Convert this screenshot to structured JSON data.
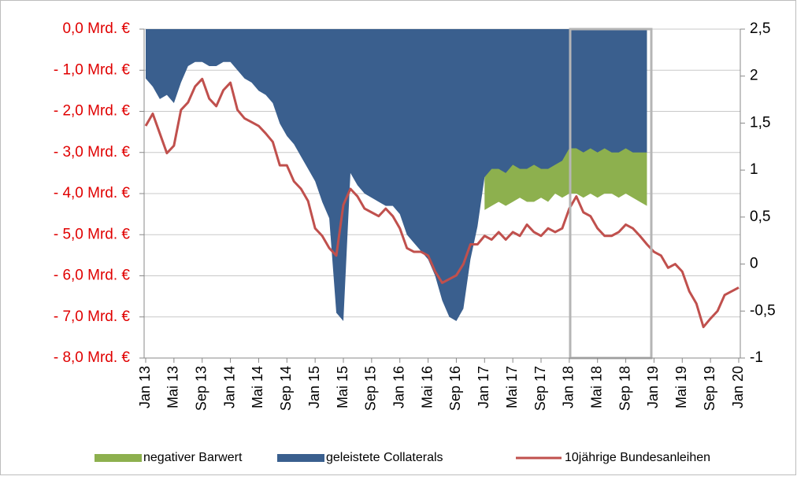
{
  "chart_data": {
    "type": "line",
    "categories": [
      "Jan 13",
      null,
      null,
      null,
      "Mai 13",
      null,
      null,
      null,
      "Sep 13",
      null,
      null,
      null,
      "Jan 14",
      null,
      null,
      null,
      "Mai 14",
      null,
      null,
      null,
      "Sep 14",
      null,
      null,
      null,
      "Jan 15",
      null,
      null,
      null,
      "Mai 15",
      null,
      null,
      null,
      "Sep 15",
      null,
      null,
      null,
      "Jan 16",
      null,
      null,
      null,
      "Mai 16",
      null,
      null,
      null,
      "Sep 16",
      null,
      null,
      null,
      "Jan 17",
      null,
      null,
      null,
      "Mai 17",
      null,
      null,
      null,
      "Sep 17",
      null,
      null,
      null,
      "Jan 18",
      null,
      null,
      null,
      "Mai 18",
      null,
      null,
      null,
      "Sep 18",
      null,
      null,
      null,
      "Jan 19",
      null,
      null,
      null,
      "Mai 19",
      null,
      null,
      null,
      "Sep 19",
      null,
      null,
      null,
      "Jan 20"
    ],
    "series": [
      {
        "name": "negativer Barwert",
        "type": "area",
        "color": "#8db04e",
        "values": [
          null,
          null,
          null,
          null,
          null,
          null,
          null,
          null,
          null,
          null,
          null,
          null,
          null,
          null,
          null,
          null,
          null,
          null,
          null,
          null,
          null,
          null,
          null,
          null,
          null,
          null,
          null,
          null,
          null,
          null,
          null,
          null,
          null,
          null,
          null,
          null,
          null,
          null,
          null,
          null,
          null,
          null,
          null,
          null,
          null,
          null,
          null,
          null,
          -4.4,
          -4.3,
          -4.2,
          -4.3,
          -4.2,
          -4.1,
          -4.2,
          -4.2,
          -4.1,
          -4.2,
          -4.0,
          -4.1,
          -4.0,
          -4.0,
          -4.1,
          -4.0,
          -4.1,
          -4.0,
          -4.0,
          -4.1,
          -4.0,
          -4.1,
          -4.2,
          -4.3,
          null,
          null,
          null,
          null,
          null,
          null,
          null,
          null,
          null,
          null,
          null,
          null,
          null
        ]
      },
      {
        "name": "geleistete Collaterals",
        "type": "area",
        "color": "#3a5f8e",
        "values": [
          -1.2,
          -1.4,
          -1.7,
          -1.6,
          -1.8,
          -1.3,
          -0.9,
          -0.8,
          -0.8,
          -0.9,
          -0.9,
          -0.8,
          -0.8,
          -1.0,
          -1.2,
          -1.3,
          -1.5,
          -1.6,
          -1.8,
          -2.3,
          -2.6,
          -2.8,
          -3.1,
          -3.4,
          -3.7,
          -4.2,
          -4.6,
          -6.9,
          -7.1,
          -3.5,
          -3.8,
          -4.0,
          -4.1,
          -4.2,
          -4.3,
          -4.3,
          -4.5,
          -5.0,
          -5.2,
          -5.4,
          -5.6,
          -6.0,
          -6.6,
          -7.0,
          -7.1,
          -6.8,
          -5.6,
          -4.8,
          -3.6,
          -3.4,
          -3.4,
          -3.5,
          -3.3,
          -3.4,
          -3.4,
          -3.3,
          -3.4,
          -3.4,
          -3.3,
          -3.2,
          -2.9,
          -2.9,
          -3.0,
          -2.9,
          -3.0,
          -2.9,
          -3.0,
          -3.0,
          -2.9,
          -3.0,
          -3.0,
          -3.0,
          null,
          null,
          null,
          null,
          null,
          null,
          null,
          null,
          null,
          null,
          null,
          null,
          null
        ]
      },
      {
        "name": "10jährige Bundesanleihen",
        "type": "line",
        "axis": "y2",
        "color": "#c0504d",
        "values": [
          1.47,
          1.6,
          1.39,
          1.18,
          1.26,
          1.64,
          1.72,
          1.89,
          1.97,
          1.76,
          1.68,
          1.85,
          1.93,
          1.64,
          1.55,
          1.51,
          1.47,
          1.39,
          1.3,
          1.05,
          1.05,
          0.88,
          0.8,
          0.67,
          0.38,
          0.3,
          0.17,
          0.09,
          0.63,
          0.8,
          0.72,
          0.59,
          0.55,
          0.51,
          0.59,
          0.51,
          0.38,
          0.17,
          0.13,
          0.13,
          0.09,
          -0.08,
          -0.2,
          -0.16,
          -0.12,
          0,
          0.21,
          0.21,
          0.3,
          0.26,
          0.34,
          0.26,
          0.34,
          0.3,
          0.42,
          0.34,
          0.3,
          0.38,
          0.34,
          0.38,
          0.59,
          0.72,
          0.55,
          0.51,
          0.38,
          0.3,
          0.3,
          0.34,
          0.42,
          0.38,
          0.3,
          0.21,
          0.13,
          0.09,
          -0.04,
          0,
          -0.08,
          -0.29,
          -0.42,
          -0.67,
          -0.58,
          -0.5,
          -0.33,
          -0.29,
          -0.25
        ]
      }
    ],
    "ylim": [
      -8,
      0
    ],
    "yticks": [
      {
        "value": 0,
        "label": "0,0 Mrd. €"
      },
      {
        "value": -1,
        "label": "- 1,0 Mrd. €"
      },
      {
        "value": -2,
        "label": "- 2,0 Mrd. €"
      },
      {
        "value": -3,
        "label": "- 3,0 Mrd. €"
      },
      {
        "value": -4,
        "label": "- 4,0 Mrd. €"
      },
      {
        "value": -5,
        "label": "- 5,0 Mrd. €"
      },
      {
        "value": -6,
        "label": "- 6,0 Mrd. €"
      },
      {
        "value": -7,
        "label": "- 7,0 Mrd. €"
      },
      {
        "value": -8,
        "label": "- 8,0 Mrd. €"
      }
    ],
    "y2lim": [
      -1,
      2.5
    ],
    "y2ticks": [
      {
        "value": 2.5,
        "label": "2,5"
      },
      2,
      {
        "value": 1.5,
        "label": "1,5"
      },
      1,
      {
        "value": 0.5,
        "label": "0,5"
      },
      0,
      {
        "value": -0.5,
        "label": "-0,5"
      },
      -1
    ],
    "grid": true,
    "legend": "bottom"
  }
}
